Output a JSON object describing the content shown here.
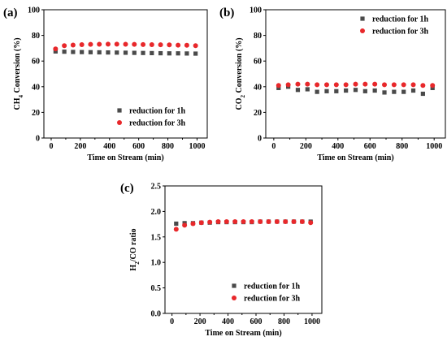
{
  "chart_data": [
    {
      "panel": "(a)",
      "type": "scatter",
      "xlabel": "Time on Stream (min)",
      "ylabel_main": "CH",
      "ylabel_sub": "4",
      "ylabel_rest": " Conversion (%)",
      "xlim": [
        -50,
        1070
      ],
      "ylim": [
        0,
        100
      ],
      "xticks": [
        "0",
        "200",
        "400",
        "600",
        "800",
        "1000"
      ],
      "yticks": [
        "0",
        "20",
        "40",
        "60",
        "80",
        "100"
      ],
      "legend_position": "lower-right",
      "series": [
        {
          "name": "reduction for 1h",
          "marker": "square",
          "color": "#4a4a4a",
          "x": [
            30,
            90,
            150,
            210,
            270,
            330,
            390,
            450,
            510,
            570,
            630,
            690,
            750,
            810,
            870,
            930,
            990
          ],
          "y": [
            67.5,
            67.3,
            67.1,
            67.0,
            66.9,
            66.8,
            66.7,
            66.6,
            66.5,
            66.4,
            66.3,
            66.2,
            66.1,
            66.0,
            66.0,
            65.9,
            65.8
          ]
        },
        {
          "name": "reduction for 3h",
          "marker": "circle",
          "color": "#e8282b",
          "x": [
            30,
            90,
            150,
            210,
            270,
            330,
            390,
            450,
            510,
            570,
            630,
            690,
            750,
            810,
            870,
            930,
            990
          ],
          "y": [
            69.5,
            72.0,
            72.5,
            72.8,
            73.0,
            73.1,
            73.2,
            73.2,
            73.1,
            73.0,
            72.9,
            72.8,
            72.7,
            72.6,
            72.4,
            72.3,
            72.0
          ]
        }
      ]
    },
    {
      "panel": "(b)",
      "type": "scatter",
      "xlabel": "Time on Stream (min)",
      "ylabel_main": "CO",
      "ylabel_sub": "2",
      "ylabel_rest": " Conversion (%)",
      "xlim": [
        -50,
        1070
      ],
      "ylim": [
        0,
        100
      ],
      "xticks": [
        "0",
        "200",
        "400",
        "600",
        "800",
        "1000"
      ],
      "yticks": [
        "0",
        "20",
        "40",
        "60",
        "80",
        "100"
      ],
      "legend_position": "top-right",
      "series": [
        {
          "name": "reduction for 1h",
          "marker": "square",
          "color": "#4a4a4a",
          "x": [
            30,
            90,
            150,
            210,
            270,
            330,
            390,
            450,
            510,
            570,
            630,
            690,
            750,
            810,
            870,
            930,
            990
          ],
          "y": [
            39.0,
            40.0,
            37.5,
            38.0,
            36.0,
            36.5,
            36.5,
            37.0,
            37.5,
            36.5,
            37.0,
            35.5,
            36.0,
            36.0,
            37.0,
            34.5,
            39.0
          ]
        },
        {
          "name": "reduction for 3h",
          "marker": "circle",
          "color": "#e8282b",
          "x": [
            30,
            90,
            150,
            210,
            270,
            330,
            390,
            450,
            510,
            570,
            630,
            690,
            750,
            810,
            870,
            930,
            990
          ],
          "y": [
            41.0,
            41.5,
            42.0,
            42.0,
            41.5,
            41.5,
            41.5,
            41.5,
            42.0,
            42.0,
            42.0,
            41.5,
            41.5,
            41.5,
            41.5,
            41.0,
            41.0
          ]
        }
      ]
    },
    {
      "panel": "(c)",
      "type": "scatter",
      "xlabel": "Time on Stream (min)",
      "ylabel_main": "H",
      "ylabel_sub": "2",
      "ylabel_rest": "/CO ratio",
      "xlim": [
        -50,
        1070
      ],
      "ylim": [
        0,
        2.5
      ],
      "xticks": [
        "0",
        "200",
        "400",
        "600",
        "800",
        "1000"
      ],
      "yticks": [
        "0.0",
        "0.5",
        "1.0",
        "1.5",
        "2.0",
        "2.5"
      ],
      "legend_position": "lower-right",
      "series": [
        {
          "name": "reduction for 1h",
          "marker": "square",
          "color": "#4a4a4a",
          "x": [
            30,
            90,
            150,
            210,
            270,
            330,
            390,
            450,
            510,
            570,
            630,
            690,
            750,
            810,
            870,
            930,
            990
          ],
          "y": [
            1.76,
            1.77,
            1.77,
            1.78,
            1.78,
            1.79,
            1.79,
            1.79,
            1.79,
            1.79,
            1.8,
            1.8,
            1.8,
            1.8,
            1.8,
            1.8,
            1.8
          ]
        },
        {
          "name": "reduction for 3h",
          "marker": "circle",
          "color": "#e8282b",
          "x": [
            30,
            90,
            150,
            210,
            270,
            330,
            390,
            450,
            510,
            570,
            630,
            690,
            750,
            810,
            870,
            930,
            990
          ],
          "y": [
            1.65,
            1.73,
            1.76,
            1.78,
            1.79,
            1.8,
            1.8,
            1.8,
            1.8,
            1.8,
            1.8,
            1.8,
            1.8,
            1.8,
            1.8,
            1.8,
            1.78
          ]
        }
      ]
    }
  ]
}
